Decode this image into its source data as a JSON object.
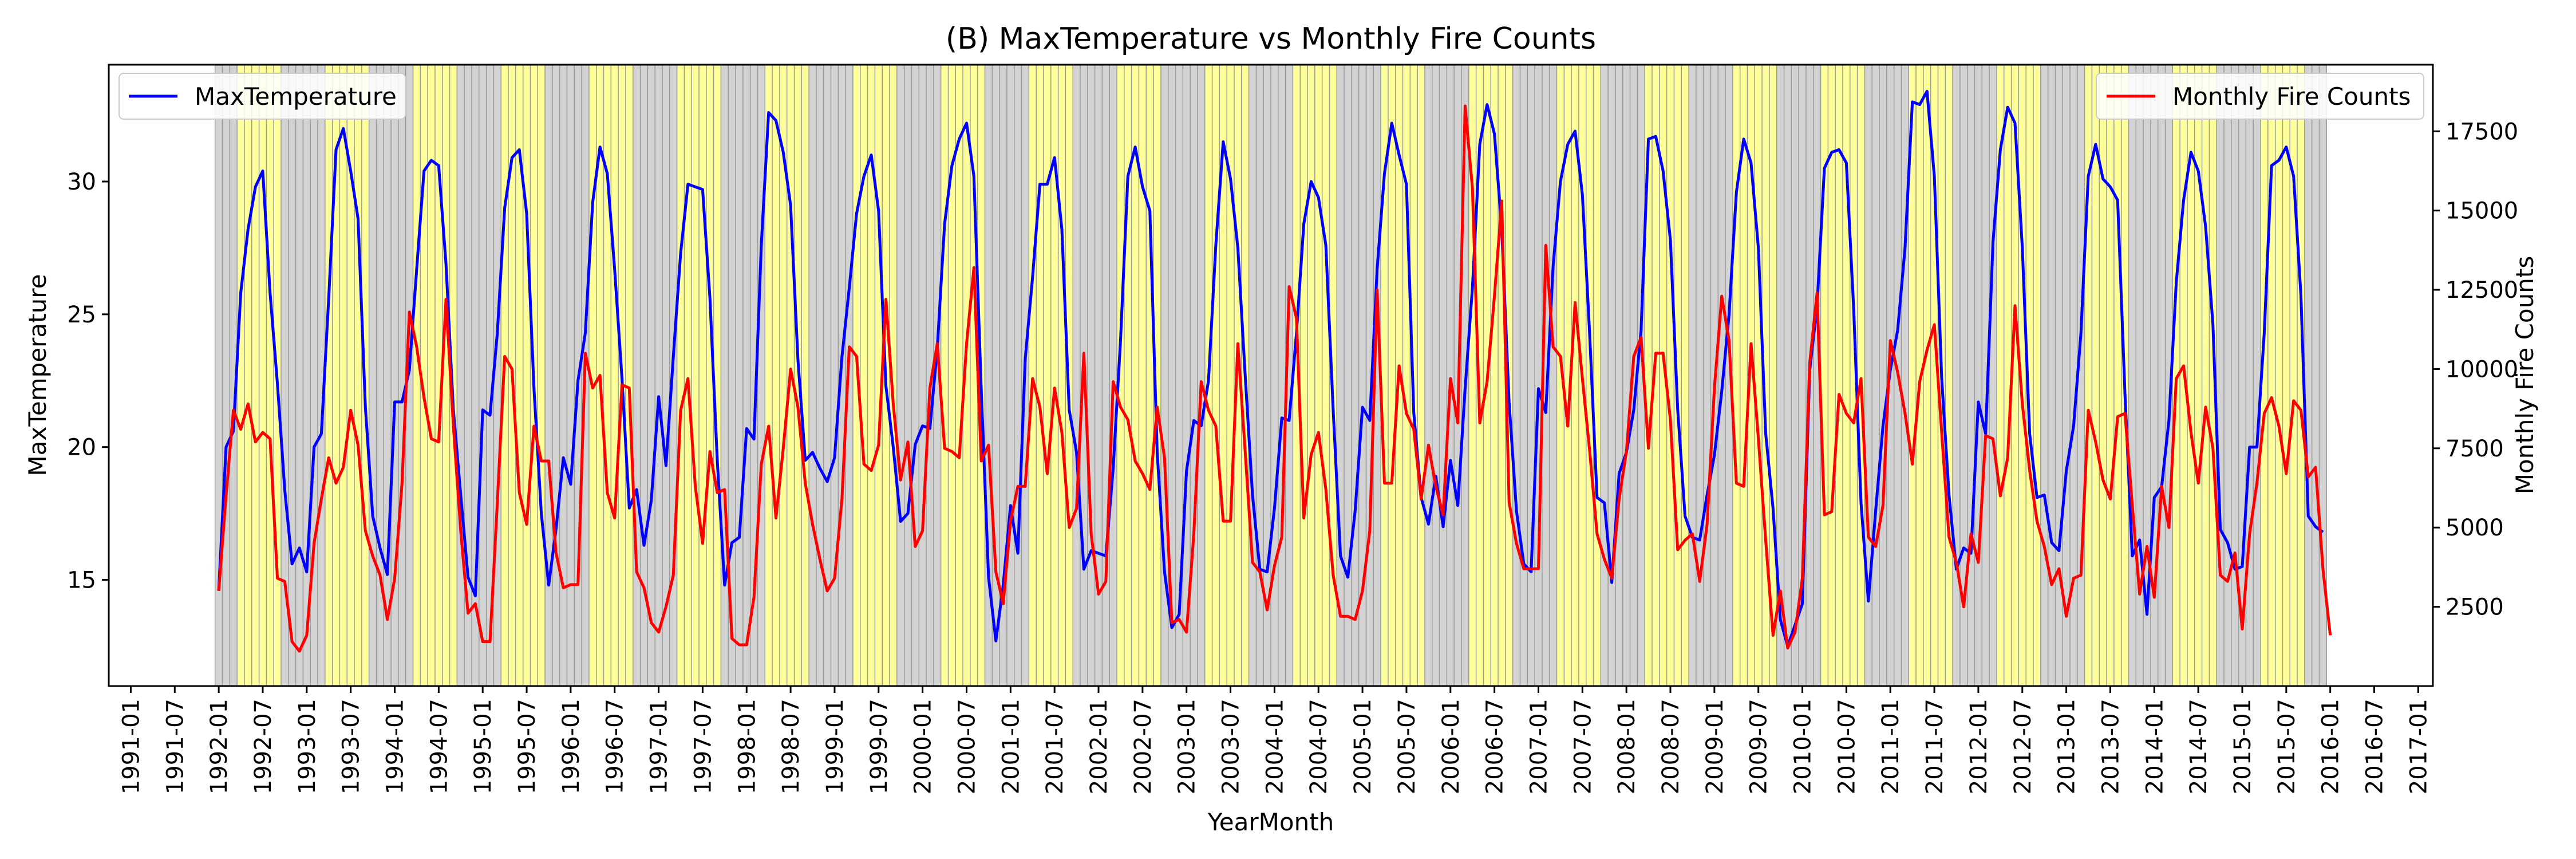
{
  "chart_data": {
    "type": "line",
    "title": "(B) MaxTemperature vs Monthly Fire Counts",
    "xlabel": "YearMonth",
    "ylabel_left": "MaxTemperature",
    "ylabel_right": "Monthly Fire Counts",
    "xlim": [
      "1990-10",
      "2017-03"
    ],
    "ylim_left": [
      11,
      34.4
    ],
    "ylim_right": [
      0,
      19600
    ],
    "x_ticks": [
      "1991-01",
      "1991-07",
      "1992-01",
      "1992-07",
      "1993-01",
      "1993-07",
      "1994-01",
      "1994-07",
      "1995-01",
      "1995-07",
      "1996-01",
      "1996-07",
      "1997-01",
      "1997-07",
      "1998-01",
      "1998-07",
      "1999-01",
      "1999-07",
      "2000-01",
      "2000-07",
      "2001-01",
      "2001-07",
      "2002-01",
      "2002-07",
      "2003-01",
      "2003-07",
      "2004-01",
      "2004-07",
      "2005-01",
      "2005-07",
      "2006-01",
      "2006-07",
      "2007-01",
      "2007-07",
      "2008-01",
      "2008-07",
      "2009-01",
      "2009-07",
      "2010-01",
      "2010-07",
      "2011-01",
      "2011-07",
      "2012-01",
      "2012-07",
      "2013-01",
      "2013-07",
      "2014-01",
      "2014-07",
      "2015-01",
      "2015-07",
      "2016-01",
      "2016-07",
      "2017-01"
    ],
    "y_ticks_left": [
      15,
      20,
      25,
      30
    ],
    "y_ticks_right": [
      2500,
      5000,
      7500,
      10000,
      12500,
      15000,
      17500
    ],
    "grid": false,
    "start_month": "1992-01",
    "season_bands": {
      "gray_months": [
        1,
        2,
        3,
        10,
        11,
        12
      ],
      "yellow_months": [
        4,
        5,
        6,
        7,
        8,
        9
      ],
      "gray_color": "#d3d3d3",
      "yellow_color": "#ffff99"
    },
    "series": [
      {
        "name": "MaxTemperature",
        "axis": "left",
        "color": "#0000ff",
        "values": [
          14.6,
          20.0,
          20.6,
          25.8,
          28.2,
          29.8,
          30.4,
          25.8,
          22.4,
          18.4,
          15.6,
          16.2,
          15.3,
          20.0,
          20.5,
          25.6,
          31.2,
          32.0,
          30.4,
          28.6,
          21.5,
          17.4,
          16.2,
          15.2,
          21.7,
          21.7,
          22.9,
          26.7,
          30.4,
          30.8,
          30.6,
          26.9,
          21.4,
          18.2,
          15.1,
          14.4,
          21.4,
          21.2,
          24.3,
          29.0,
          30.9,
          31.2,
          28.8,
          22.2,
          17.5,
          14.8,
          16.9,
          19.6,
          18.6,
          22.5,
          24.3,
          29.2,
          31.3,
          30.3,
          26.7,
          22.6,
          17.7,
          18.4,
          16.3,
          18.0,
          21.9,
          19.3,
          23.4,
          27.3,
          29.9,
          29.8,
          29.7,
          25.6,
          19.5,
          14.8,
          16.4,
          16.6,
          20.7,
          20.3,
          27.6,
          32.6,
          32.3,
          31.1,
          29.1,
          23.3,
          19.5,
          19.8,
          19.2,
          18.7,
          19.6,
          23.4,
          26.0,
          28.8,
          30.2,
          31.0,
          28.9,
          22.3,
          20.0,
          17.2,
          17.5,
          20.1,
          20.8,
          20.7,
          23.7,
          28.4,
          30.6,
          31.6,
          32.2,
          30.2,
          22.2,
          15.1,
          12.7,
          14.8,
          17.8,
          16.0,
          23.3,
          26.4,
          29.9,
          29.9,
          30.9,
          28.2,
          21.4,
          19.8,
          15.4,
          16.1,
          16.0,
          15.9,
          19.2,
          24.0,
          30.2,
          31.3,
          29.8,
          28.9,
          19.8,
          15.3,
          13.2,
          13.7,
          19.1,
          21.0,
          20.8,
          22.5,
          27.6,
          31.5,
          30.1,
          27.5,
          22.7,
          18.2,
          15.4,
          15.3,
          17.7,
          21.1,
          21.0,
          24.3,
          28.4,
          30.0,
          29.4,
          27.6,
          21.4,
          15.9,
          15.1,
          17.6,
          21.5,
          21.0,
          26.7,
          30.3,
          32.2,
          31.0,
          29.9,
          21.3,
          18.1,
          17.1,
          18.9,
          17.0,
          19.5,
          17.8,
          22.2,
          26.0,
          31.4,
          32.9,
          31.8,
          28.2,
          21.7,
          17.6,
          15.6,
          15.3,
          22.2,
          21.3,
          26.8,
          30.0,
          31.4,
          31.9,
          29.5,
          24.2,
          18.1,
          17.9,
          14.9,
          19.0,
          19.8,
          21.4,
          24.4,
          31.6,
          31.7,
          30.4,
          27.8,
          21.4,
          17.4,
          16.6,
          16.5,
          18.2,
          19.7,
          22.1,
          25.0,
          29.6,
          31.6,
          30.7,
          27.5,
          20.5,
          17.7,
          13.5,
          12.5,
          13.3,
          14.1,
          22.9,
          25.3,
          30.5,
          31.1,
          31.2,
          30.7,
          25.2,
          17.9,
          14.2,
          17.6,
          20.8,
          22.9,
          24.4,
          27.5,
          33.0,
          32.9,
          33.4,
          30.2,
          22.6,
          18.2,
          15.4,
          16.2,
          16.0,
          21.7,
          20.5,
          27.7,
          31.2,
          32.8,
          32.2,
          27.5,
          20.5,
          18.1,
          18.2,
          16.4,
          16.1,
          19.1,
          20.8,
          24.3,
          30.2,
          31.4,
          30.1,
          29.8,
          29.3,
          22.0,
          15.9,
          16.5,
          13.7,
          18.1,
          18.5,
          21.0,
          26.2,
          29.3,
          31.1,
          30.4,
          28.3,
          24.6,
          16.9,
          16.4,
          15.4,
          15.5,
          20.0,
          20.0,
          24.3,
          30.6,
          30.8,
          31.3,
          30.2,
          25.7,
          17.4,
          17.0,
          16.8
        ]
      },
      {
        "name": "Monthly Fire Counts",
        "axis": "right",
        "color": "#ff0000",
        "values": [
          3000,
          6000,
          8700,
          8100,
          8900,
          7700,
          8000,
          7800,
          3400,
          3300,
          1400,
          1100,
          1600,
          4500,
          5900,
          7200,
          6400,
          6900,
          8700,
          7600,
          4900,
          4100,
          3500,
          2100,
          3400,
          6400,
          11800,
          10700,
          9100,
          7800,
          7700,
          12200,
          8200,
          4900,
          2300,
          2600,
          1400,
          1400,
          5800,
          10400,
          10000,
          6100,
          5100,
          8200,
          7100,
          7100,
          4200,
          3100,
          3200,
          3200,
          10500,
          9400,
          9800,
          6100,
          5300,
          9500,
          9400,
          3600,
          3100,
          2000,
          1700,
          2500,
          3500,
          8700,
          9700,
          6300,
          4500,
          7400,
          6100,
          6200,
          1500,
          1300,
          1300,
          2800,
          7000,
          8200,
          5300,
          7500,
          10000,
          8800,
          6400,
          5100,
          4000,
          3000,
          3400,
          5900,
          10700,
          10400,
          7000,
          6800,
          7600,
          12200,
          8900,
          6500,
          7700,
          4400,
          4900,
          9400,
          10800,
          7500,
          7400,
          7200,
          10800,
          13200,
          7100,
          7600,
          3600,
          2600,
          5200,
          6300,
          6300,
          9700,
          8800,
          6700,
          9400,
          8000,
          5000,
          5600,
          10500,
          4800,
          2900,
          3300,
          9600,
          8800,
          8400,
          7100,
          6700,
          6200,
          8800,
          7200,
          2000,
          2100,
          1700,
          4800,
          9600,
          8700,
          8200,
          5200,
          5200,
          10800,
          7400,
          3900,
          3600,
          2400,
          3800,
          4700,
          12600,
          11600,
          5300,
          7300,
          8000,
          6200,
          3500,
          2200,
          2200,
          2100,
          3000,
          4900,
          12500,
          6400,
          6400,
          10100,
          8600,
          8100,
          5900,
          7600,
          6300,
          5400,
          9700,
          8300,
          18300,
          15700,
          8300,
          9600,
          12300,
          15300,
          5800,
          4500,
          3700,
          3700,
          3700,
          13900,
          10700,
          10400,
          8200,
          12100,
          9700,
          7400,
          4800,
          4000,
          3400,
          5900,
          7400,
          10400,
          11000,
          7500,
          10500,
          10500,
          8400,
          4300,
          4600,
          4800,
          3300,
          5100,
          9400,
          12300,
          10900,
          6400,
          6300,
          10800,
          7800,
          4600,
          1600,
          3000,
          1200,
          1700,
          3400,
          10200,
          12400,
          5400,
          5500,
          9200,
          8600,
          8300,
          9700,
          4700,
          4400,
          5700,
          10900,
          9900,
          8600,
          7000,
          9600,
          10600,
          11400,
          8000,
          4700,
          3900,
          2500,
          4800,
          3900,
          7900,
          7800,
          6000,
          7200,
          12000,
          8900,
          6800,
          5200,
          4400,
          3200,
          3700,
          2200,
          3400,
          3500,
          8700,
          7700,
          6500,
          5900,
          8500,
          8600,
          5700,
          2900,
          4400,
          2800,
          6300,
          5000,
          9700,
          10100,
          8000,
          6400,
          8800,
          7500,
          3500,
          3300,
          4200,
          1800,
          4800,
          6400,
          8600,
          9100,
          8200,
          6700,
          9000,
          8700,
          6600,
          6900,
          3700,
          1600
        ]
      }
    ]
  }
}
